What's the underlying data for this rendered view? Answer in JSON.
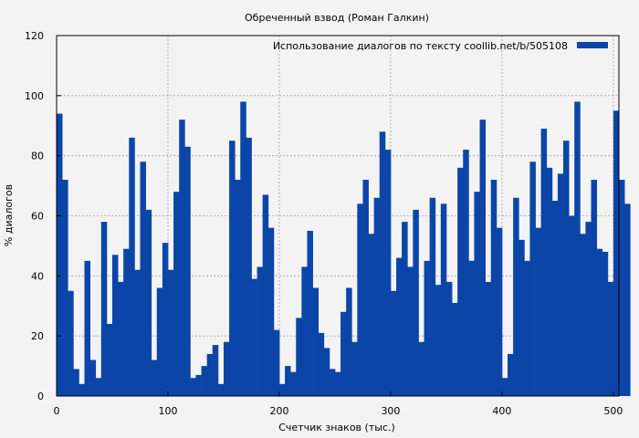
{
  "chart_data": {
    "type": "bar",
    "title": "Обреченный взвод (Роман Галкин)",
    "xlabel": "Счетчик знаков (тыс.)",
    "ylabel": "% диалогов",
    "xlim": [
      0,
      505
    ],
    "ylim": [
      0,
      120
    ],
    "xticks": [
      "0",
      "100",
      "200",
      "300",
      "400",
      "500"
    ],
    "xtick_values": [
      0,
      100,
      200,
      300,
      400,
      500
    ],
    "yticks": [
      "0",
      "20",
      "40",
      "60",
      "80",
      "100",
      "120"
    ],
    "ytick_values": [
      0,
      20,
      40,
      60,
      80,
      100,
      120
    ],
    "grid": true,
    "legend_position": "top-right",
    "series": [
      {
        "name": "Использование диалогов по тексту  coollib.net/b/505108",
        "color": "#0b45a8",
        "x_step": 5,
        "x_start": 2.5,
        "values": [
          94,
          72,
          35,
          9,
          4,
          45,
          12,
          6,
          58,
          24,
          47,
          38,
          49,
          86,
          42,
          78,
          62,
          12,
          36,
          51,
          42,
          68,
          92,
          83,
          6,
          7,
          10,
          14,
          17,
          4,
          18,
          85,
          72,
          98,
          86,
          39,
          43,
          67,
          56,
          22,
          4,
          10,
          8,
          26,
          43,
          55,
          36,
          21,
          16,
          9,
          8,
          28,
          36,
          18,
          64,
          72,
          54,
          66,
          88,
          82,
          35,
          46,
          58,
          43,
          62,
          18,
          45,
          66,
          37,
          64,
          38,
          31,
          76,
          82,
          45,
          68,
          92,
          38,
          72,
          56,
          6,
          14,
          66,
          52,
          45,
          78,
          56,
          89,
          76,
          65,
          74,
          85,
          60,
          98,
          54,
          58,
          72,
          49,
          48,
          38,
          95,
          72,
          64
        ]
      }
    ]
  }
}
